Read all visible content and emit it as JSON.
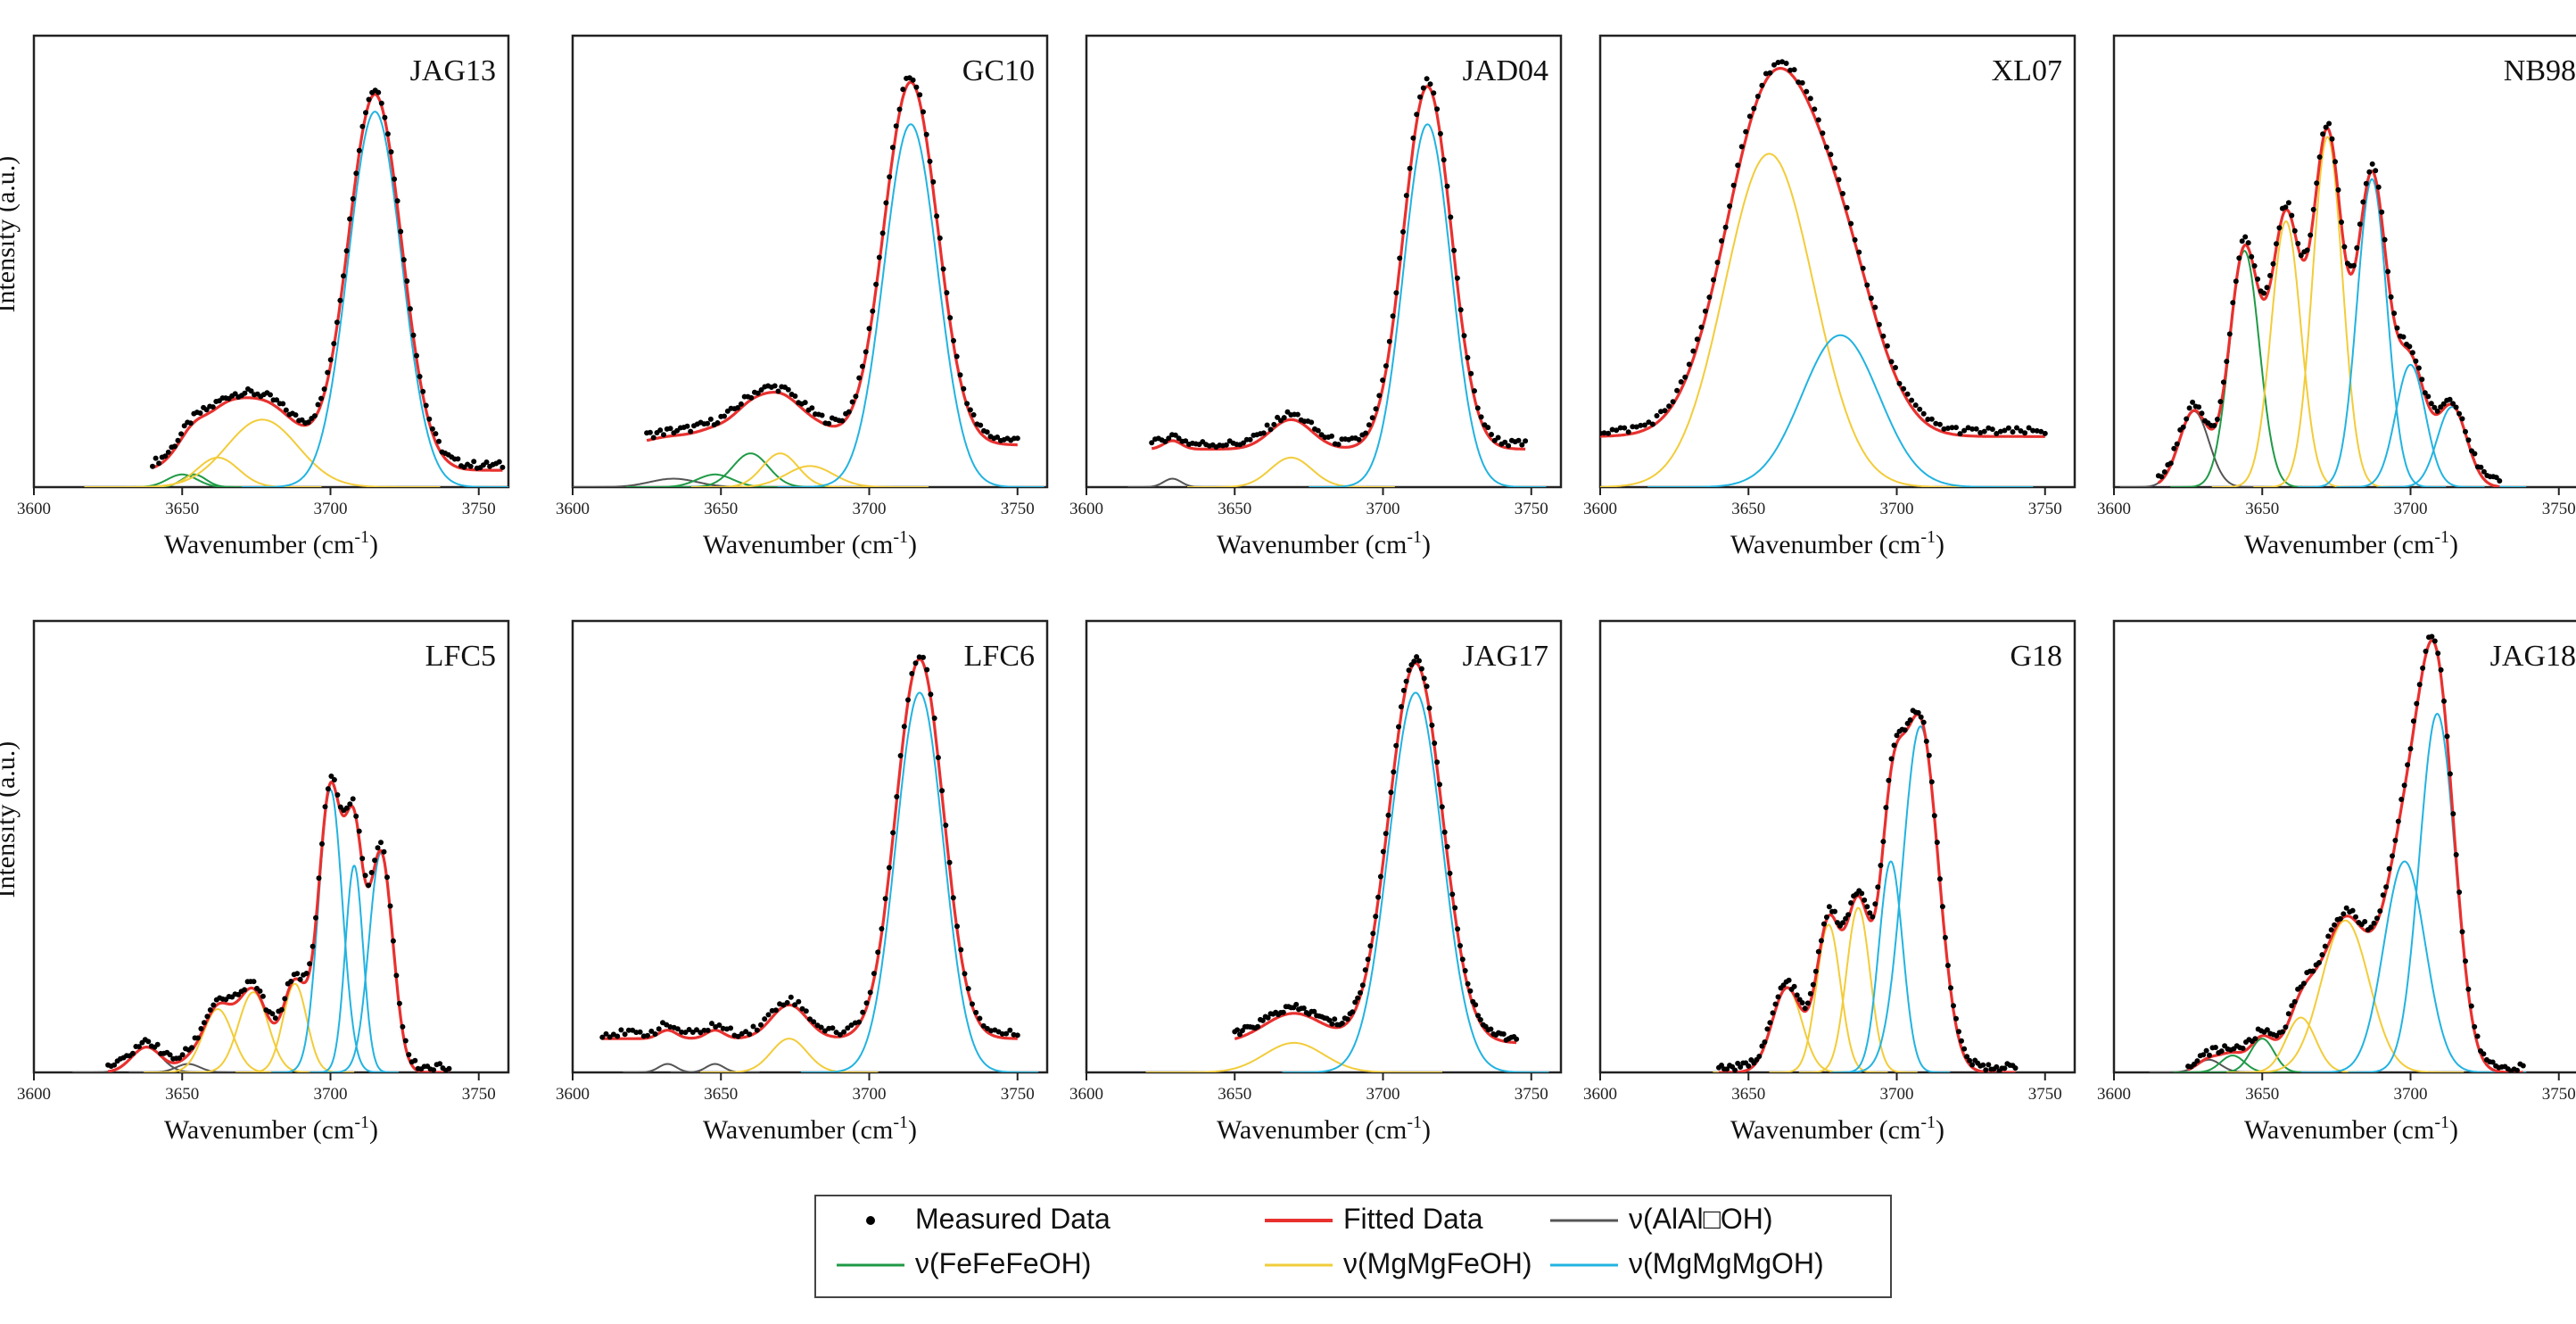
{
  "chart_data": {
    "type": "line",
    "xlabel": "Wavenumber (cm",
    "xlabel_unit_sup": "-1",
    "xlabel_close": ")",
    "ylabel": "Intensity (a.u.)",
    "xlim": [
      3600,
      3760
    ],
    "x_ticks": [
      "3600",
      "3650",
      "3700",
      "3750"
    ],
    "legend": {
      "placement": "bottom-center",
      "entries": [
        {
          "key": "measured",
          "label": "Measured Data",
          "color": "#000000",
          "style": "dot"
        },
        {
          "key": "fitted",
          "label": "Fitted Data",
          "color": "#e8312f",
          "style": "line"
        },
        {
          "key": "alal",
          "label": "ν(AlAl□OH)",
          "color": "#555555",
          "style": "line"
        },
        {
          "key": "fefefe",
          "label": "ν(FeFeFeOH)",
          "color": "#1f9a46",
          "style": "line"
        },
        {
          "key": "mgmgfe",
          "label": "ν(MgMgFeOH)",
          "color": "#f2cc3a",
          "style": "line"
        },
        {
          "key": "mgmgmg",
          "label": "ν(MgMgMgOH)",
          "color": "#22b3e0",
          "style": "line"
        }
      ]
    },
    "panels": [
      {
        "name": "JAG13",
        "row": 0,
        "col": 0,
        "x_range": [
          3640,
          3758
        ],
        "baseline": 0.04,
        "peaks": [
          {
            "type": "fefefe",
            "center": 3650,
            "height": 0.03,
            "width": 5
          },
          {
            "type": "fefefe",
            "center": 3654,
            "height": 0.03,
            "width": 4
          },
          {
            "type": "mgmgfe",
            "center": 3662,
            "height": 0.07,
            "width": 7
          },
          {
            "type": "mgmgfe",
            "center": 3677,
            "height": 0.16,
            "width": 12
          },
          {
            "type": "mgmgmg",
            "center": 3715,
            "height": 0.89,
            "width": 9
          }
        ]
      },
      {
        "name": "GC10",
        "row": 0,
        "col": 1,
        "x_range": [
          3625,
          3750
        ],
        "baseline": 0.1,
        "peaks": [
          {
            "type": "alal",
            "center": 3634,
            "height": 0.02,
            "width": 8
          },
          {
            "type": "fefefe",
            "center": 3648,
            "height": 0.03,
            "width": 6
          },
          {
            "type": "fefefe",
            "center": 3660,
            "height": 0.08,
            "width": 6
          },
          {
            "type": "mgmgfe",
            "center": 3670,
            "height": 0.08,
            "width": 6
          },
          {
            "type": "mgmgfe",
            "center": 3680,
            "height": 0.05,
            "width": 8
          },
          {
            "type": "mgmgmg",
            "center": 3714,
            "height": 0.86,
            "width": 9
          }
        ]
      },
      {
        "name": "JAD04",
        "row": 0,
        "col": 2,
        "x_range": [
          3622,
          3748
        ],
        "baseline": 0.09,
        "peaks": [
          {
            "type": "alal",
            "center": 3629,
            "height": 0.02,
            "width": 3
          },
          {
            "type": "mgmgfe",
            "center": 3669,
            "height": 0.07,
            "width": 7
          },
          {
            "type": "mgmgmg",
            "center": 3715,
            "height": 0.86,
            "width": 8
          }
        ]
      },
      {
        "name": "XL07",
        "row": 0,
        "col": 3,
        "x_range": [
          3600,
          3750
        ],
        "baseline": 0.12,
        "peaks": [
          {
            "type": "mgmgfe",
            "center": 3657,
            "height": 0.79,
            "width": 15
          },
          {
            "type": "mgmgmg",
            "center": 3681,
            "height": 0.36,
            "width": 13
          }
        ]
      },
      {
        "name": "NB98",
        "row": 0,
        "col": 4,
        "x_range": [
          3615,
          3730
        ],
        "baseline": 0.0,
        "peaks": [
          {
            "type": "alal",
            "center": 3627,
            "height": 0.18,
            "width": 5
          },
          {
            "type": "fefefe",
            "center": 3644,
            "height": 0.56,
            "width": 5
          },
          {
            "type": "mgmgfe",
            "center": 3658,
            "height": 0.63,
            "width": 5
          },
          {
            "type": "mgmgfe",
            "center": 3672,
            "height": 0.83,
            "width": 5
          },
          {
            "type": "mgmgmg",
            "center": 3687,
            "height": 0.73,
            "width": 5
          },
          {
            "type": "mgmgmg",
            "center": 3700,
            "height": 0.29,
            "width": 5
          },
          {
            "type": "mgmgmg",
            "center": 3714,
            "height": 0.19,
            "width": 5
          }
        ]
      },
      {
        "name": "LFC5",
        "row": 1,
        "col": 0,
        "x_range": [
          3625,
          3740
        ],
        "baseline": 0.0,
        "peaks": [
          {
            "type": "alal",
            "center": 3638,
            "height": 0.06,
            "width": 5
          },
          {
            "type": "alal",
            "center": 3652,
            "height": 0.02,
            "width": 4
          },
          {
            "type": "mgmgfe",
            "center": 3662,
            "height": 0.15,
            "width": 5
          },
          {
            "type": "mgmgfe",
            "center": 3674,
            "height": 0.19,
            "width": 5
          },
          {
            "type": "mgmgfe",
            "center": 3688,
            "height": 0.21,
            "width": 4
          },
          {
            "type": "mgmgmg",
            "center": 3700,
            "height": 0.67,
            "width": 4
          },
          {
            "type": "mgmgmg",
            "center": 3708,
            "height": 0.49,
            "width": 3
          },
          {
            "type": "mgmgmg",
            "center": 3717,
            "height": 0.52,
            "width": 4
          }
        ]
      },
      {
        "name": "LFC6",
        "row": 1,
        "col": 1,
        "x_range": [
          3610,
          3750
        ],
        "baseline": 0.08,
        "peaks": [
          {
            "type": "alal",
            "center": 3632,
            "height": 0.02,
            "width": 3
          },
          {
            "type": "alal",
            "center": 3648,
            "height": 0.02,
            "width": 3
          },
          {
            "type": "mgmgfe",
            "center": 3673,
            "height": 0.08,
            "width": 6
          },
          {
            "type": "mgmgmg",
            "center": 3717,
            "height": 0.9,
            "width": 8
          }
        ]
      },
      {
        "name": "JAG17",
        "row": 1,
        "col": 2,
        "x_range": [
          3650,
          3745
        ],
        "baseline": 0.07,
        "peaks": [
          {
            "type": "mgmgfe",
            "center": 3670,
            "height": 0.07,
            "width": 10
          },
          {
            "type": "mgmgmg",
            "center": 3711,
            "height": 0.9,
            "width": 9
          }
        ]
      },
      {
        "name": "G18",
        "row": 1,
        "col": 3,
        "x_range": [
          3640,
          3740
        ],
        "baseline": 0.0,
        "peaks": [
          {
            "type": "mgmgfe",
            "center": 3663,
            "height": 0.2,
            "width": 5
          },
          {
            "type": "mgmgfe",
            "center": 3677,
            "height": 0.35,
            "width": 4
          },
          {
            "type": "mgmgfe",
            "center": 3687,
            "height": 0.39,
            "width": 4
          },
          {
            "type": "mgmgmg",
            "center": 3698,
            "height": 0.5,
            "width": 4
          },
          {
            "type": "mgmgmg",
            "center": 3708,
            "height": 0.82,
            "width": 6
          }
        ]
      },
      {
        "name": "JAG18",
        "row": 1,
        "col": 4,
        "x_range": [
          3625,
          3738
        ],
        "baseline": 0.0,
        "peaks": [
          {
            "type": "alal",
            "center": 3632,
            "height": 0.03,
            "width": 4
          },
          {
            "type": "fefefe",
            "center": 3640,
            "height": 0.04,
            "width": 4
          },
          {
            "type": "fefefe",
            "center": 3650,
            "height": 0.08,
            "width": 4
          },
          {
            "type": "mgmgfe",
            "center": 3663,
            "height": 0.13,
            "width": 5
          },
          {
            "type": "mgmgfe",
            "center": 3678,
            "height": 0.36,
            "width": 8
          },
          {
            "type": "mgmgmg",
            "center": 3698,
            "height": 0.5,
            "width": 7
          },
          {
            "type": "mgmgmg",
            "center": 3709,
            "height": 0.85,
            "width": 6
          }
        ]
      }
    ]
  }
}
